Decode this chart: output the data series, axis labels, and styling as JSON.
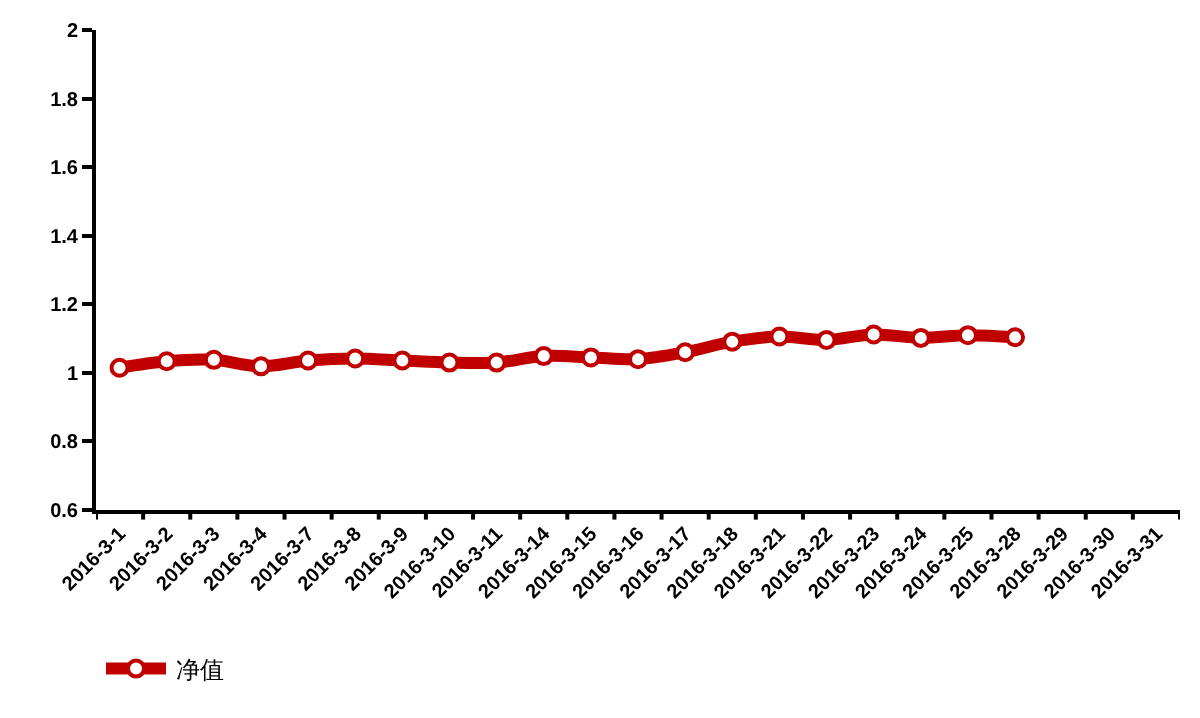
{
  "chart_data": {
    "type": "line",
    "categories": [
      "2016-3-1",
      "2016-3-2",
      "2016-3-3",
      "2016-3-4",
      "2016-3-7",
      "2016-3-8",
      "2016-3-9",
      "2016-3-10",
      "2016-3-11",
      "2016-3-14",
      "2016-3-15",
      "2016-3-16",
      "2016-3-17",
      "2016-3-18",
      "2016-3-21",
      "2016-3-22",
      "2016-3-23",
      "2016-3-24",
      "2016-3-25",
      "2016-3-28",
      "2016-3-29",
      "2016-3-30",
      "2016-3-31"
    ],
    "series": [
      {
        "name": "净值",
        "color": "#c00000",
        "values": [
          1.015,
          1.034,
          1.038,
          1.019,
          1.036,
          1.042,
          1.036,
          1.03,
          1.03,
          1.049,
          1.045,
          1.04,
          1.06,
          1.091,
          1.106,
          1.096,
          1.112,
          1.102,
          1.11,
          1.104,
          null,
          null,
          null
        ]
      }
    ],
    "ylim": [
      0.6,
      2
    ],
    "yticks": [
      0.6,
      0.8,
      1,
      1.2,
      1.4,
      1.6,
      1.8,
      2
    ],
    "legend": "bottom left",
    "marker": "circle",
    "line_style": "solid"
  }
}
